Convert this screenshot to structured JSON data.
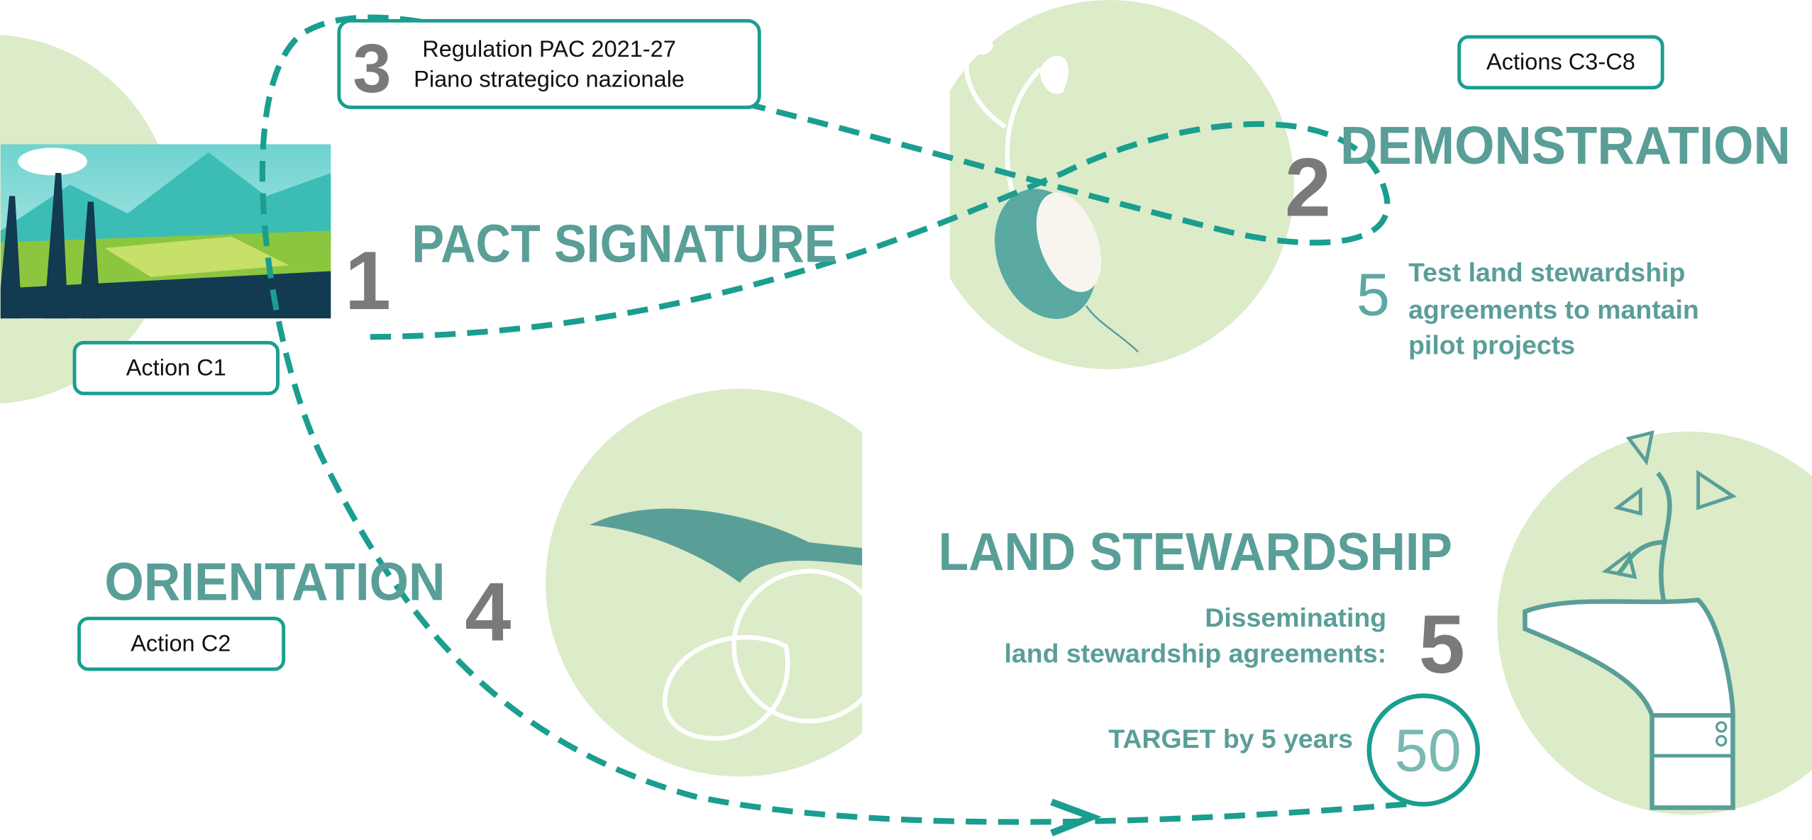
{
  "steps": [
    {
      "number": "1",
      "title": "PACT SIGNATURE",
      "action": "Action C1"
    },
    {
      "number": "2",
      "title": "DEMONSTRATION",
      "action": "Actions C3-C8",
      "detail_number": "5",
      "detail": [
        "Test land stewardship",
        "agreements to mantain",
        "pilot projects"
      ]
    },
    {
      "number": "3",
      "lines": [
        "Regulation PAC 2021-27",
        "Piano strategico nazionale"
      ]
    },
    {
      "number": "4",
      "title": "ORIENTATION",
      "action": "Action C2"
    },
    {
      "number": "5",
      "title": "LAND STEWARDSHIP",
      "detail": [
        "Disseminating",
        "land stewardship agreements:"
      ],
      "target_label": "TARGET by 5 years",
      "target": "50"
    }
  ]
}
